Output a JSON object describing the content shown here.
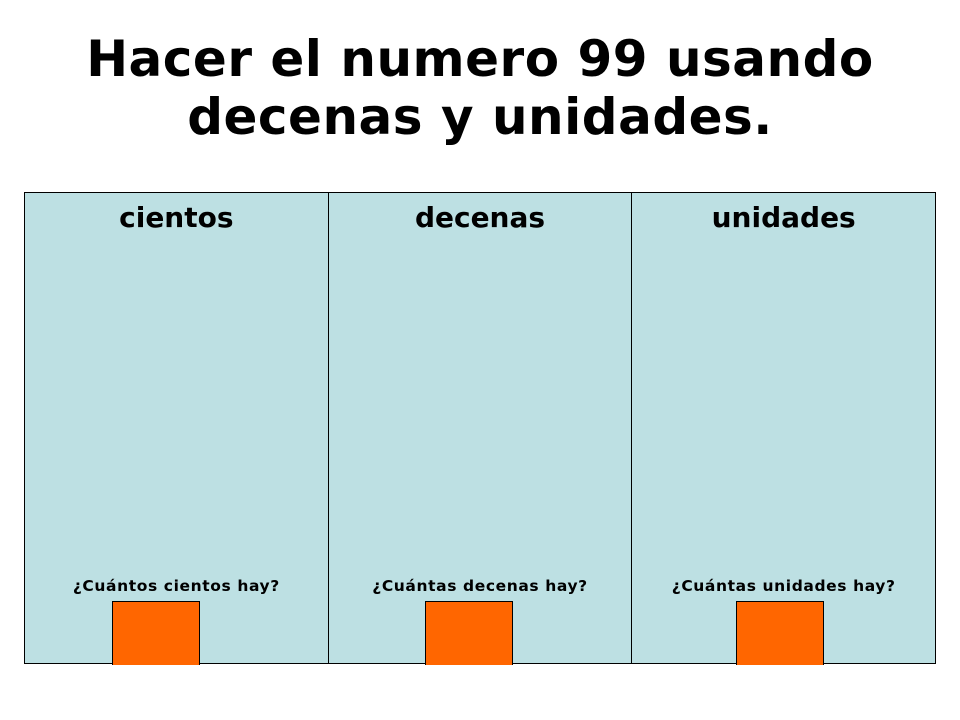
{
  "slide": {
    "title_line1": "Hacer el numero 99 usando",
    "title_line2": "decenas y unidades."
  },
  "colors": {
    "panel_bg": "#bde0e3",
    "answer_box": "#ff6600",
    "border": "#000000",
    "text": "#000000"
  },
  "columns": [
    {
      "header": "cientos",
      "question": "¿Cuántos cientos hay?"
    },
    {
      "header": "decenas",
      "question": "¿Cuántas decenas hay?"
    },
    {
      "header": "unidades",
      "question": "¿Cuántas unidades hay?"
    }
  ]
}
